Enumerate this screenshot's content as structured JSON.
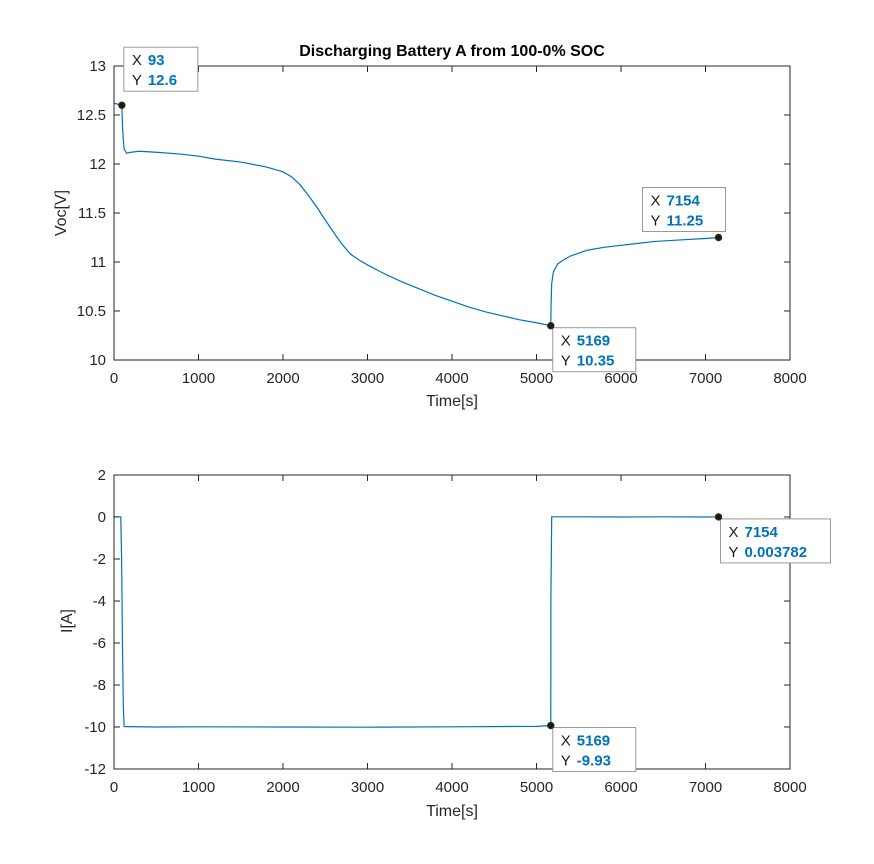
{
  "chart_data": [
    {
      "type": "line",
      "title": "Discharging Battery A from 100-0% SOC",
      "xlabel": "Time[s]",
      "ylabel": "Voc[V]",
      "xlim": [
        0,
        8000
      ],
      "ylim": [
        10,
        13
      ],
      "xticks": [
        "0",
        "1000",
        "2000",
        "3000",
        "4000",
        "5000",
        "6000",
        "7000",
        "8000"
      ],
      "yticks": [
        "10",
        "10.5",
        "11",
        "11.5",
        "12",
        "12.5",
        "13"
      ],
      "grid": false,
      "color": "#0072bd",
      "series": [
        {
          "x": [
            0,
            93,
            100,
            110,
            120,
            150,
            200,
            300,
            500,
            800,
            1000,
            1200,
            1500,
            1800,
            2000,
            2100,
            2200,
            2300,
            2400,
            2500,
            2600,
            2700,
            2800,
            2900,
            3000,
            3200,
            3400,
            3600,
            3800,
            4000,
            4200,
            4400,
            4600,
            4800,
            5000,
            5169,
            5172,
            5180,
            5200,
            5250,
            5300,
            5400,
            5500,
            5600,
            5800,
            6000,
            6200,
            6400,
            6600,
            6800,
            7000,
            7154
          ],
          "y": [
            12.62,
            12.6,
            12.4,
            12.25,
            12.15,
            12.11,
            12.12,
            12.13,
            12.12,
            12.1,
            12.08,
            12.05,
            12.02,
            11.97,
            11.92,
            11.87,
            11.79,
            11.68,
            11.56,
            11.43,
            11.3,
            11.18,
            11.08,
            11.02,
            10.97,
            10.88,
            10.8,
            10.73,
            10.66,
            10.6,
            10.54,
            10.49,
            10.45,
            10.41,
            10.38,
            10.35,
            10.55,
            10.78,
            10.9,
            10.98,
            11.01,
            11.06,
            11.09,
            11.12,
            11.15,
            11.17,
            11.19,
            11.21,
            11.22,
            11.23,
            11.24,
            11.25
          ]
        }
      ],
      "datatips": [
        {
          "x": 93,
          "y": 12.6,
          "x_text": "93",
          "y_text": "12.6"
        },
        {
          "x": 5169,
          "y": 10.35,
          "x_text": "5169",
          "y_text": "10.35"
        },
        {
          "x": 7154,
          "y": 11.25,
          "x_text": "7154",
          "y_text": "11.25"
        }
      ]
    },
    {
      "type": "line",
      "title": "",
      "xlabel": "Time[s]",
      "ylabel": "I[A]",
      "xlim": [
        0,
        8000
      ],
      "ylim": [
        -12,
        2
      ],
      "xticks": [
        "0",
        "1000",
        "2000",
        "3000",
        "4000",
        "5000",
        "6000",
        "7000",
        "8000"
      ],
      "yticks": [
        "-12",
        "-10",
        "-8",
        "-6",
        "-4",
        "-2",
        "0",
        "2"
      ],
      "grid": false,
      "color": "#0072bd",
      "series": [
        {
          "x": [
            0,
            80,
            90,
            100,
            110,
            120,
            500,
            1000,
            2000,
            3000,
            4000,
            5000,
            5169,
            5170,
            5180,
            5500,
            6000,
            6500,
            7000,
            7154
          ],
          "y": [
            0.02,
            0.0,
            -2.0,
            -6.0,
            -9.0,
            -9.98,
            -10.0,
            -9.99,
            -10.0,
            -10.01,
            -9.99,
            -9.97,
            -9.93,
            -4.0,
            0.01,
            0.01,
            0.0,
            0.01,
            0.0,
            0.003782
          ]
        }
      ],
      "datatips": [
        {
          "x": 5169,
          "y": -9.93,
          "x_text": "5169",
          "y_text": "-9.93"
        },
        {
          "x": 7154,
          "y": 0.003782,
          "x_text": "7154",
          "y_text": "0.003782"
        }
      ]
    }
  ],
  "labels": {
    "x_key": "X",
    "y_key": "Y"
  },
  "colors": {
    "line": "#0072bd",
    "tip_value": "#0072bd",
    "axis": "#262626",
    "tip_border": "#999999",
    "tip_bg": "#ffffff"
  }
}
